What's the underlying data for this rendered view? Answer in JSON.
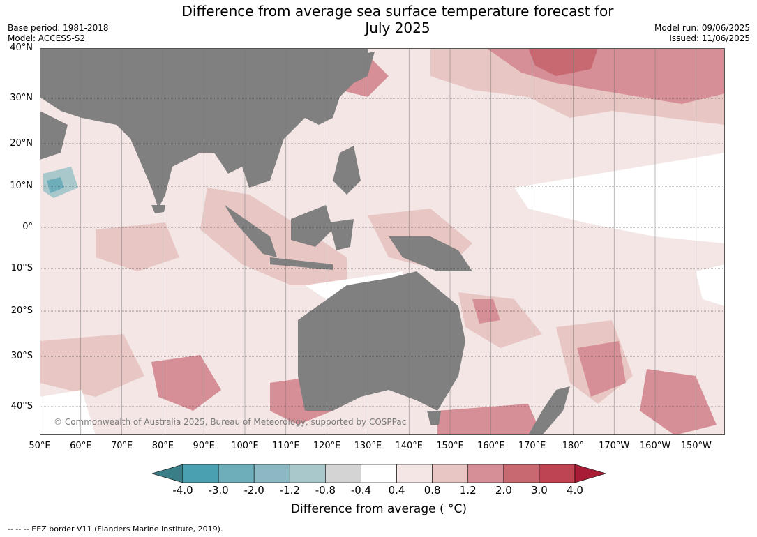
{
  "title_line1": "Difference from average sea surface temperature forecast for",
  "title_line2": "July 2025",
  "base_period": "Base period: 1981-2018",
  "model": "Model: ACCESS-S2",
  "model_run": "Model run: 09/06/2025",
  "issued": "Issued: 11/06/2025",
  "copyright": "© Commonwealth of Australia 2025, Bureau of Meteorology, supported by COSPPac",
  "lat_labels": [
    "40°N",
    "30°N",
    "20°N",
    "10°N",
    "0°",
    "10°S",
    "20°S",
    "30°S",
    "40°S"
  ],
  "lon_labels": [
    "50°E",
    "60°E",
    "70°E",
    "80°E",
    "90°E",
    "100°E",
    "110°E",
    "120°E",
    "130°E",
    "140°E",
    "150°E",
    "160°E",
    "170°E",
    "180°",
    "170°W",
    "160°W",
    "150°W"
  ],
  "colorbar": {
    "ticks": [
      "-4.0",
      "-3.0",
      "-2.0",
      "-1.2",
      "-0.8",
      "-0.4",
      "0.4",
      "0.8",
      "1.2",
      "2.0",
      "3.0",
      "4.0"
    ],
    "colors": [
      "#3a7f88",
      "#4aa0b0",
      "#6eaebb",
      "#8bb8c3",
      "#a9c8cc",
      "#d4d4d4",
      "#ffffff",
      "#f3e6e5",
      "#e8c6c4",
      "#d68f96",
      "#c86870",
      "#be4452",
      "#a81c35"
    ],
    "label": "Difference from average ( °C)"
  },
  "footnote": "--  --  -- EEZ border V11 (Flanders Marine Institute, 2019)."
}
